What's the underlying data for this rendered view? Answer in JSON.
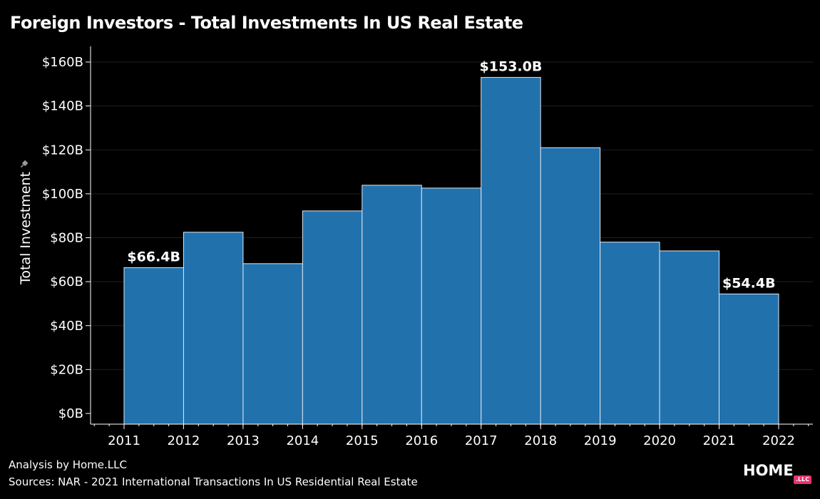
{
  "title": "Foreign Investors - Total Investments In US Real Estate",
  "footer": {
    "analysis": "Analysis by Home.LLC",
    "sources": "Sources: NAR - 2021 International Transactions In US Residential Real Estate"
  },
  "logo": {
    "text": "HOME",
    "badge": ".LLC"
  },
  "colors": {
    "background": "#000000",
    "bar": "#2171ad",
    "bar_edge": "#dfe8f0",
    "grid": "#1f1f1f",
    "text": "#ffffff"
  },
  "chart_data": {
    "type": "bar",
    "title": "Foreign Investors - Total Investments In US Real Estate",
    "ylabel": "Total Investment",
    "xlabel": "",
    "x_ticks": [
      "2011",
      "2012",
      "2013",
      "2014",
      "2015",
      "2016",
      "2017",
      "2018",
      "2019",
      "2020",
      "2021",
      "2022"
    ],
    "y_ticks": [
      "$0B",
      "$20B",
      "$40B",
      "$60B",
      "$80B",
      "$100B",
      "$120B",
      "$140B",
      "$160B"
    ],
    "ylim": [
      0,
      160
    ],
    "bins": [
      {
        "start": 2011,
        "end": 2012,
        "value": 66.4
      },
      {
        "start": 2012,
        "end": 2013,
        "value": 82.5
      },
      {
        "start": 2013,
        "end": 2014,
        "value": 68.2
      },
      {
        "start": 2014,
        "end": 2015,
        "value": 92.2
      },
      {
        "start": 2015,
        "end": 2016,
        "value": 103.9
      },
      {
        "start": 2016,
        "end": 2017,
        "value": 102.6
      },
      {
        "start": 2017,
        "end": 2018,
        "value": 153.0
      },
      {
        "start": 2018,
        "end": 2019,
        "value": 121.0
      },
      {
        "start": 2019,
        "end": 2020,
        "value": 78.0
      },
      {
        "start": 2020,
        "end": 2021,
        "value": 74.0
      },
      {
        "start": 2021,
        "end": 2022,
        "value": 54.4
      }
    ],
    "data_labels": [
      {
        "bin": 0,
        "text": "$66.4B"
      },
      {
        "bin": 6,
        "text": "$153.0B"
      },
      {
        "bin": 10,
        "text": "$54.4B"
      }
    ],
    "grid": true
  }
}
